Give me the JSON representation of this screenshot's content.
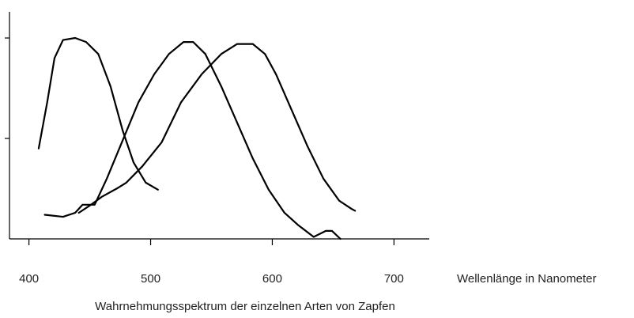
{
  "chart_data": {
    "type": "line",
    "title": "Wahrnehmungsspektrum der einzelnen Arten von Zapfen",
    "x_label": "Wellenlänge in Nanometer",
    "xlim": [
      384,
      729
    ],
    "xticks": [
      400,
      500,
      600,
      700
    ],
    "ylim": [
      0,
      1.13
    ],
    "yticks": [
      0.5,
      1.0
    ],
    "series": [
      {
        "color": "#000000",
        "x": [
          408,
          415,
          421,
          428,
          438,
          447,
          457,
          467,
          477,
          486,
          496,
          506
        ],
        "values": [
          0.45,
          0.68,
          0.9,
          0.99,
          1.0,
          0.98,
          0.92,
          0.76,
          0.54,
          0.38,
          0.28,
          0.245
        ]
      },
      {
        "color": "#000000",
        "x": [
          441,
          451,
          454,
          464,
          477,
          490,
          503,
          515,
          527,
          535,
          545,
          558,
          571,
          584,
          597,
          610,
          621,
          634,
          644,
          649,
          656
        ],
        "values": [
          0.13,
          0.17,
          0.17,
          0.3,
          0.49,
          0.68,
          0.82,
          0.92,
          0.98,
          0.98,
          0.92,
          0.76,
          0.58,
          0.4,
          0.245,
          0.13,
          0.07,
          0.01,
          0.04,
          0.04,
          0.0
        ]
      },
      {
        "color": "#000000",
        "x": [
          413,
          428,
          438,
          444,
          451,
          460,
          472,
          480,
          493,
          509,
          525,
          542,
          558,
          571,
          584,
          594,
          603,
          616,
          629,
          642,
          655,
          665,
          668
        ],
        "values": [
          0.12,
          0.11,
          0.13,
          0.17,
          0.17,
          0.21,
          0.25,
          0.28,
          0.36,
          0.48,
          0.68,
          0.82,
          0.92,
          0.97,
          0.97,
          0.92,
          0.82,
          0.64,
          0.46,
          0.3,
          0.19,
          0.15,
          0.14
        ]
      }
    ]
  }
}
